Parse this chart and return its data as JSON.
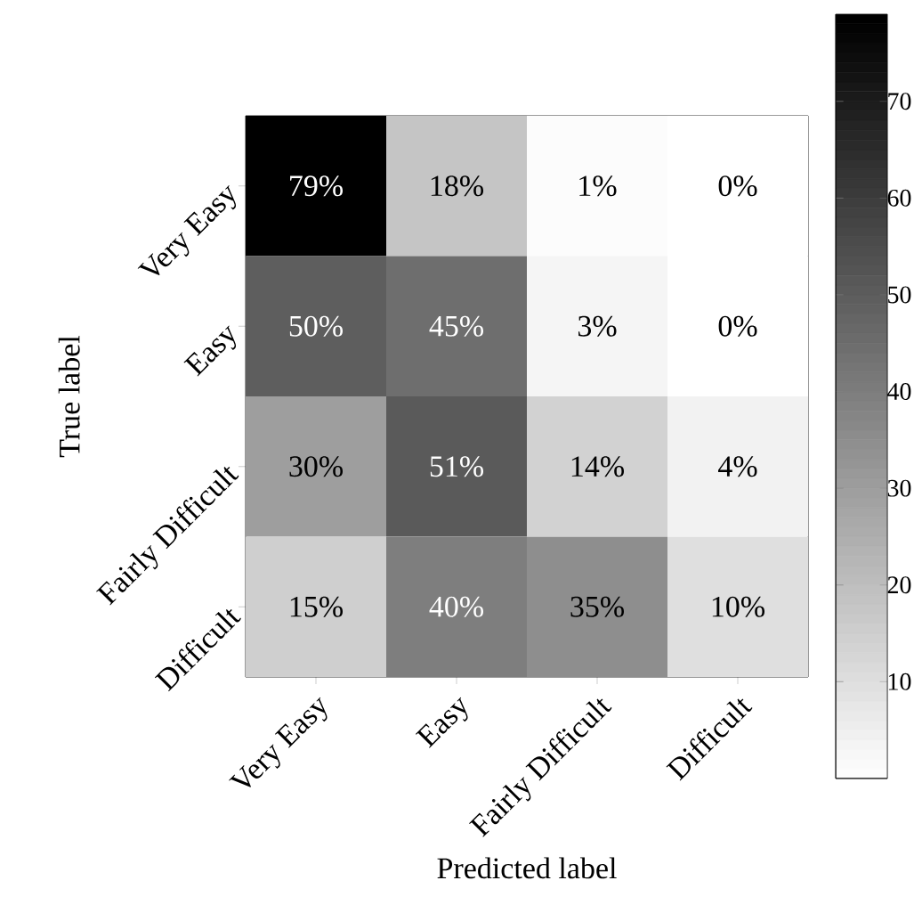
{
  "chart_data": {
    "type": "heatmap",
    "xlabel": "Predicted label",
    "ylabel": "True label",
    "categories": [
      "Very Easy",
      "Easy",
      "Fairly Difficult",
      "Difficult"
    ],
    "y_categories": [
      "Very Easy",
      "Easy",
      "Fairly Difficult",
      "Difficult"
    ],
    "cells": [
      [
        79,
        18,
        1,
        0
      ],
      [
        50,
        45,
        3,
        0
      ],
      [
        30,
        51,
        14,
        4
      ],
      [
        15,
        40,
        35,
        10
      ]
    ],
    "cell_labels": [
      [
        "79%",
        "18%",
        "1%",
        "0%"
      ],
      [
        "50%",
        "45%",
        "3%",
        "0%"
      ],
      [
        "30%",
        "51%",
        "14%",
        "4%"
      ],
      [
        "15%",
        "40%",
        "35%",
        "10%"
      ]
    ],
    "clim": [
      0,
      79
    ],
    "cticks": [
      10,
      20,
      30,
      40,
      50,
      60,
      70
    ]
  }
}
